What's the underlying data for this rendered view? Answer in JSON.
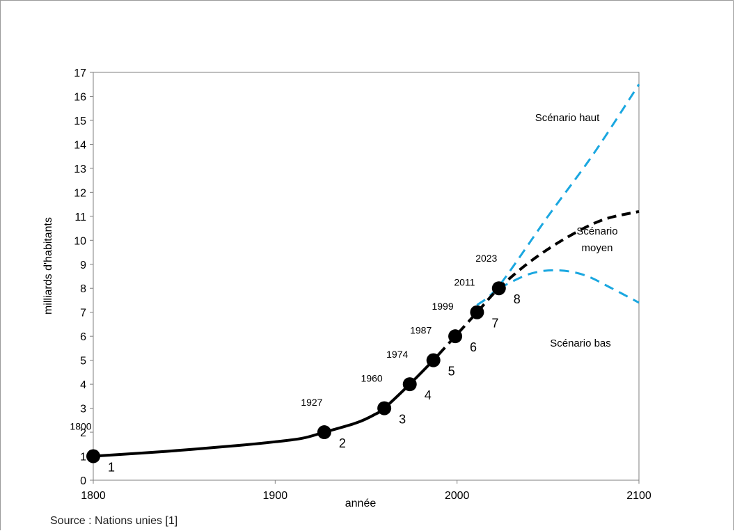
{
  "source": "Source : Nations unies [1]",
  "chart_data": {
    "type": "line",
    "xlabel": "année",
    "ylabel": "milliards d'habitants",
    "xlim": [
      1800,
      2100
    ],
    "ylim": [
      0,
      17
    ],
    "x_ticks": [
      1800,
      1900,
      2000,
      2100
    ],
    "y_ticks": [
      0,
      1,
      2,
      3,
      4,
      5,
      6,
      7,
      8,
      9,
      10,
      11,
      12,
      13,
      14,
      15,
      16,
      17
    ],
    "grid": false,
    "colors": {
      "historical": "#000000",
      "high": "#1aa7e0",
      "medium": "#000000",
      "low": "#1aa7e0"
    },
    "milestones": [
      {
        "year": 1800,
        "year_label": "1800",
        "billions": 1,
        "index_label": "1"
      },
      {
        "year": 1927,
        "year_label": "1927",
        "billions": 2,
        "index_label": "2"
      },
      {
        "year": 1960,
        "year_label": "1960",
        "billions": 3,
        "index_label": "3"
      },
      {
        "year": 1974,
        "year_label": "1974",
        "billions": 4,
        "index_label": "4"
      },
      {
        "year": 1987,
        "year_label": "1987",
        "billions": 5,
        "index_label": "5"
      },
      {
        "year": 1999,
        "year_label": "1999",
        "billions": 6,
        "index_label": "6"
      },
      {
        "year": 2011,
        "year_label": "2011",
        "billions": 7,
        "index_label": "7"
      },
      {
        "year": 2023,
        "year_label": "2023",
        "billions": 8,
        "index_label": "8"
      }
    ],
    "series": [
      {
        "key": "historical",
        "style": "solid",
        "x": [
          1800,
          1840,
          1880,
          1900,
          1915,
          1927,
          1945,
          1955,
          1960,
          1974,
          1987,
          1990
        ],
        "y": [
          1,
          1.2,
          1.45,
          1.6,
          1.75,
          2,
          2.4,
          2.75,
          3,
          4,
          5,
          5.25
        ]
      },
      {
        "key": "medium",
        "name": "Scénario moyen",
        "style": "dashed",
        "x": [
          1990,
          1999,
          2011,
          2023,
          2040,
          2060,
          2080,
          2100
        ],
        "y": [
          5.25,
          6,
          7,
          8,
          9.1,
          10.1,
          10.85,
          11.2
        ]
      },
      {
        "key": "high",
        "name": "Scénario haut",
        "style": "dashed",
        "x": [
          2011,
          2023,
          2050,
          2075,
          2100
        ],
        "y": [
          7.3,
          8.1,
          11,
          13.6,
          16.5
        ]
      },
      {
        "key": "low",
        "name": "Scénario bas",
        "style": "dashed",
        "x": [
          2023,
          2040,
          2055,
          2070,
          2085,
          2100
        ],
        "y": [
          8,
          8.6,
          8.75,
          8.55,
          8.0,
          7.4
        ]
      }
    ],
    "scenario_labels": [
      {
        "key": "high",
        "lines": [
          "Scénario haut"
        ]
      },
      {
        "key": "medium",
        "lines": [
          "Scénario",
          "moyen"
        ]
      },
      {
        "key": "low",
        "lines": [
          "Scénario bas"
        ]
      }
    ]
  }
}
